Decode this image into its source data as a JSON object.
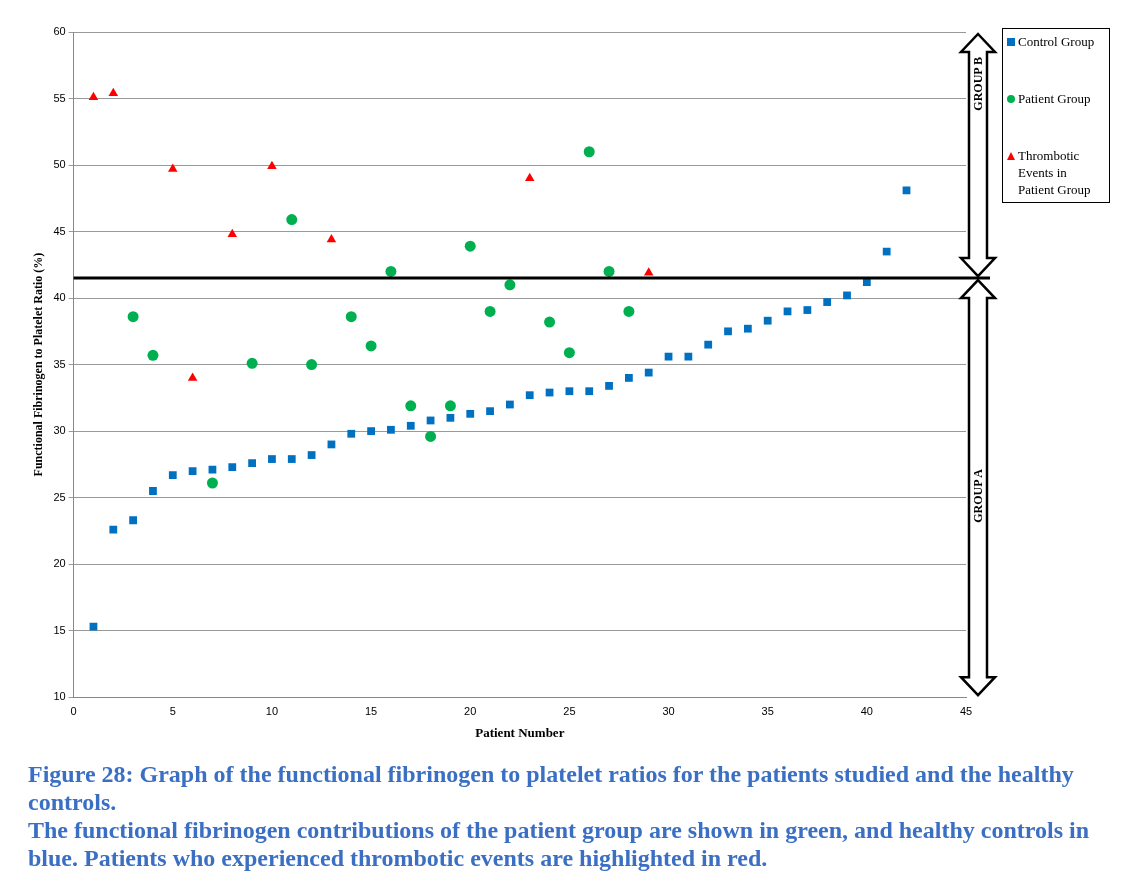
{
  "chart_data": {
    "type": "scatter",
    "title": "Figure 28: Graph of the functional fibrinogen to platelet ratios for the patients studied and the healthy controls.",
    "subtitle": "The functional fibrinogen contributions of the patient group are shown in green, and healthy controls in blue. Patients who experienced thrombotic events are highlighted in red.",
    "xlabel": "Patient Number",
    "ylabel": "Functional Fibrinogen to Platelet Ratio (%)",
    "xlim": [
      0,
      45
    ],
    "xticks": [
      0,
      5,
      10,
      15,
      20,
      25,
      30,
      35,
      40,
      45
    ],
    "ylim": [
      10,
      60
    ],
    "yticks": [
      10,
      15,
      20,
      25,
      30,
      35,
      40,
      45,
      50,
      55,
      60
    ],
    "grid": "y",
    "legend": "right",
    "series": [
      {
        "name": "Control Group",
        "color": "#0070c0",
        "marker": "square",
        "x": [
          1,
          2,
          3,
          4,
          5,
          6,
          7,
          8,
          9,
          10,
          11,
          12,
          13,
          14,
          15,
          16,
          17,
          18,
          19,
          20,
          21,
          22,
          23,
          24,
          25,
          26,
          27,
          28,
          29,
          30,
          31,
          32,
          33,
          34,
          35,
          36,
          37,
          38,
          39,
          40,
          41,
          42
        ],
        "values": [
          15.3,
          22.6,
          23.3,
          25.5,
          26.7,
          27.0,
          27.1,
          27.3,
          27.6,
          27.9,
          27.9,
          28.2,
          29.0,
          29.8,
          30.0,
          30.1,
          30.4,
          30.8,
          31.0,
          31.3,
          31.5,
          32.0,
          32.7,
          32.9,
          33.0,
          33.0,
          33.4,
          34.0,
          34.4,
          35.6,
          35.6,
          36.5,
          37.5,
          37.7,
          38.3,
          39.0,
          39.1,
          39.7,
          40.2,
          41.2,
          43.5,
          48.1
        ]
      },
      {
        "name": "Patient Group",
        "color": "#00b050",
        "marker": "circle",
        "x": [
          3,
          4,
          7,
          9,
          11,
          12,
          14,
          15,
          16,
          17,
          18,
          19,
          20,
          21,
          22,
          24,
          25,
          26,
          27,
          28
        ],
        "values": [
          38.6,
          35.7,
          26.1,
          35.1,
          45.9,
          35.0,
          38.6,
          36.4,
          42.0,
          31.9,
          29.6,
          31.9,
          43.9,
          39.0,
          41.0,
          38.2,
          35.9,
          51.0,
          42.0,
          39.0
        ]
      },
      {
        "name": "Thrombotic Events in Patient Group",
        "color": "#ff0000",
        "marker": "triangle",
        "x": [
          1,
          2,
          5,
          6,
          8,
          10,
          13,
          23,
          29
        ],
        "values": [
          55.1,
          55.4,
          49.7,
          34.0,
          44.8,
          49.9,
          44.4,
          49.0,
          41.9
        ]
      }
    ],
    "ref_lines": [
      {
        "axis": "y",
        "value": 41.5,
        "color": "#000000"
      }
    ],
    "annotations": [
      "GROUP B",
      "GROUP A"
    ]
  }
}
